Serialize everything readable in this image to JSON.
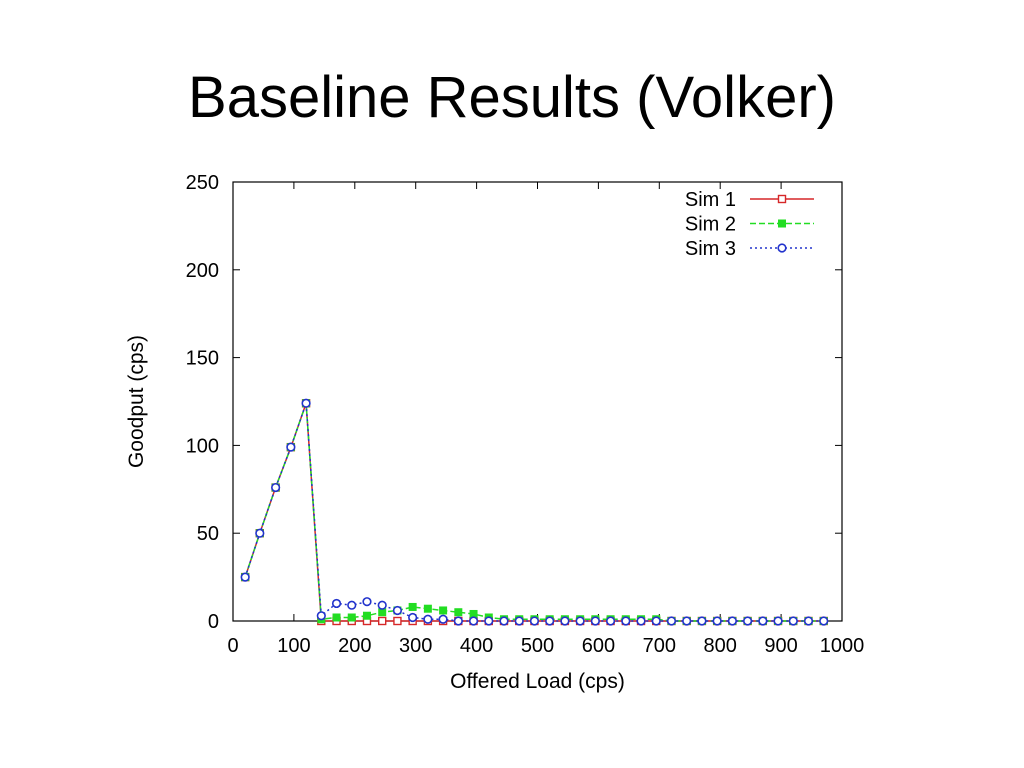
{
  "slide": {
    "title": "Baseline Results (Volker)"
  },
  "chart_data": {
    "type": "line",
    "xlabel": "Offered Load (cps)",
    "ylabel": "Goodput (cps)",
    "xlim": [
      0,
      1000
    ],
    "ylim": [
      0,
      250
    ],
    "xticks": [
      0,
      100,
      200,
      300,
      400,
      500,
      600,
      700,
      800,
      900,
      1000
    ],
    "yticks": [
      0,
      50,
      100,
      150,
      200,
      250
    ],
    "grid": false,
    "legend_position": "top-right",
    "series": [
      {
        "name": "Sim 1",
        "color": "#d62728",
        "line_style": "solid",
        "marker": "open-square",
        "points": [
          [
            20,
            25
          ],
          [
            44,
            50
          ],
          [
            70,
            76
          ],
          [
            95,
            99
          ],
          [
            120,
            124
          ],
          [
            145,
            0
          ],
          [
            170,
            0
          ],
          [
            195,
            0
          ],
          [
            220,
            0
          ],
          [
            245,
            0
          ],
          [
            270,
            0
          ],
          [
            295,
            0
          ],
          [
            320,
            0
          ],
          [
            345,
            0
          ],
          [
            370,
            0
          ],
          [
            395,
            0
          ],
          [
            420,
            0
          ],
          [
            445,
            0
          ],
          [
            470,
            0
          ],
          [
            495,
            0
          ],
          [
            520,
            0
          ],
          [
            545,
            0
          ],
          [
            570,
            0
          ],
          [
            595,
            0
          ],
          [
            620,
            0
          ],
          [
            645,
            0
          ],
          [
            670,
            0
          ],
          [
            695,
            0
          ],
          [
            720,
            0
          ],
          [
            745,
            0
          ],
          [
            770,
            0
          ],
          [
            795,
            0
          ],
          [
            820,
            0
          ],
          [
            845,
            0
          ],
          [
            870,
            0
          ],
          [
            895,
            0
          ],
          [
            920,
            0
          ],
          [
            945,
            0
          ],
          [
            970,
            0
          ]
        ]
      },
      {
        "name": "Sim 2",
        "color": "#22dd22",
        "line_style": "dashed",
        "marker": "filled-square",
        "points": [
          [
            20,
            25
          ],
          [
            44,
            50
          ],
          [
            70,
            76
          ],
          [
            95,
            99
          ],
          [
            120,
            124
          ],
          [
            145,
            1
          ],
          [
            170,
            2
          ],
          [
            195,
            2
          ],
          [
            220,
            3
          ],
          [
            245,
            5
          ],
          [
            270,
            6
          ],
          [
            295,
            8
          ],
          [
            320,
            7
          ],
          [
            345,
            6
          ],
          [
            370,
            5
          ],
          [
            395,
            4
          ],
          [
            420,
            2
          ],
          [
            445,
            1
          ],
          [
            470,
            1
          ],
          [
            495,
            1
          ],
          [
            520,
            1
          ],
          [
            545,
            1
          ],
          [
            570,
            1
          ],
          [
            595,
            1
          ],
          [
            620,
            1
          ],
          [
            645,
            1
          ],
          [
            670,
            1
          ],
          [
            695,
            1
          ],
          [
            720,
            0
          ],
          [
            745,
            0
          ],
          [
            770,
            0
          ],
          [
            795,
            0
          ],
          [
            820,
            0
          ],
          [
            845,
            0
          ],
          [
            870,
            0
          ],
          [
            895,
            0
          ],
          [
            920,
            0
          ],
          [
            945,
            0
          ],
          [
            970,
            0
          ]
        ]
      },
      {
        "name": "Sim 3",
        "color": "#2233cc",
        "line_style": "dotted",
        "marker": "open-circle",
        "points": [
          [
            20,
            25
          ],
          [
            44,
            50
          ],
          [
            70,
            76
          ],
          [
            95,
            99
          ],
          [
            120,
            124
          ],
          [
            145,
            3
          ],
          [
            170,
            10
          ],
          [
            195,
            9
          ],
          [
            220,
            11
          ],
          [
            245,
            9
          ],
          [
            270,
            6
          ],
          [
            295,
            2
          ],
          [
            320,
            1
          ],
          [
            345,
            1
          ],
          [
            370,
            0
          ],
          [
            395,
            0
          ],
          [
            420,
            0
          ],
          [
            445,
            0
          ],
          [
            470,
            0
          ],
          [
            495,
            0
          ],
          [
            520,
            0
          ],
          [
            545,
            0
          ],
          [
            570,
            0
          ],
          [
            595,
            0
          ],
          [
            620,
            0
          ],
          [
            645,
            0
          ],
          [
            670,
            0
          ],
          [
            695,
            0
          ],
          [
            720,
            0
          ],
          [
            745,
            0
          ],
          [
            770,
            0
          ],
          [
            795,
            0
          ],
          [
            820,
            0
          ],
          [
            845,
            0
          ],
          [
            870,
            0
          ],
          [
            895,
            0
          ],
          [
            920,
            0
          ],
          [
            945,
            0
          ],
          [
            970,
            0
          ]
        ]
      }
    ]
  }
}
